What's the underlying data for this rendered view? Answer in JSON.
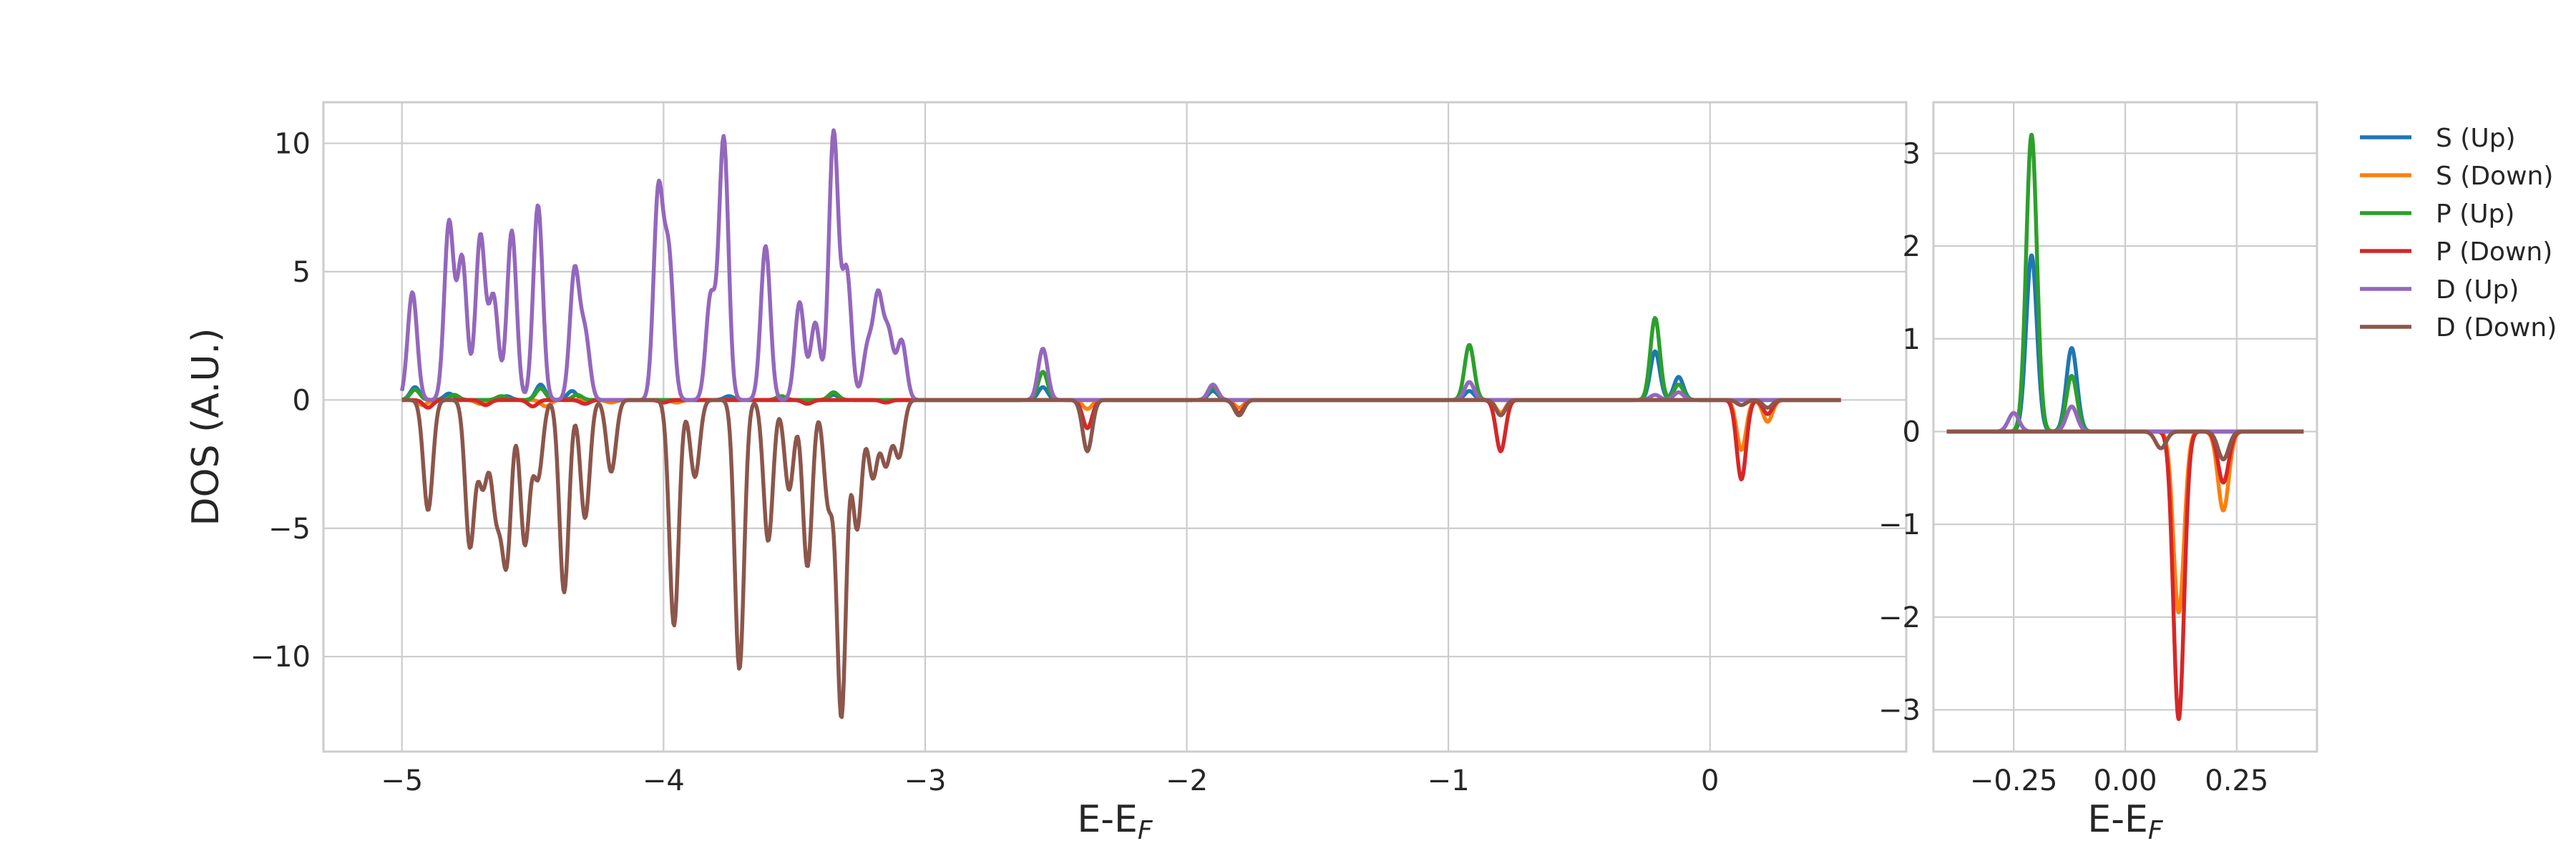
{
  "chart_data": [
    {
      "type": "line",
      "title": "",
      "xlabel": "E-E",
      "xlabel_subscript": "F",
      "ylabel": "DOS (A.U.)",
      "xlim": [
        -5.3,
        0.75
      ],
      "ylim": [
        -13.7,
        11.6
      ],
      "xticks": [
        -5,
        -4,
        -3,
        -2,
        -1,
        0
      ],
      "xtick_labels": [
        "−5",
        "−4",
        "−3",
        "−2",
        "−1",
        "0"
      ],
      "yticks": [
        -10,
        -5,
        0,
        5,
        10
      ],
      "ytick_labels": [
        "−10",
        "−5",
        "0",
        "5",
        "10"
      ],
      "grid": true,
      "sigma": 0.018,
      "x_range": [
        -5.0,
        0.5
      ],
      "series": [
        {
          "name": "S (Up)",
          "color": "#1f77b4",
          "peaks": [
            [
              -4.95,
              0.5
            ],
            [
              -4.82,
              0.25
            ],
            [
              -4.6,
              0.15
            ],
            [
              -4.47,
              0.6
            ],
            [
              -4.35,
              0.35
            ],
            [
              -3.75,
              0.15
            ],
            [
              -3.35,
              0.2
            ],
            [
              -2.55,
              0.5
            ],
            [
              -1.9,
              0.35
            ],
            [
              -0.92,
              0.35
            ],
            [
              -0.21,
              1.9
            ],
            [
              -0.12,
              0.9
            ]
          ]
        },
        {
          "name": "S (Down)",
          "color": "#ff7f0e",
          "peaks": [
            [
              -4.92,
              -0.2
            ],
            [
              -4.7,
              -0.15
            ],
            [
              -4.45,
              -0.25
            ],
            [
              -4.2,
              -0.1
            ],
            [
              -3.95,
              -0.1
            ],
            [
              -2.38,
              -0.35
            ],
            [
              -1.8,
              -0.3
            ],
            [
              -0.8,
              -0.5
            ],
            [
              0.12,
              -1.95
            ],
            [
              0.22,
              -0.85
            ]
          ]
        },
        {
          "name": "P (Up)",
          "color": "#2ca02c",
          "peaks": [
            [
              -4.95,
              0.4
            ],
            [
              -4.8,
              0.2
            ],
            [
              -4.62,
              0.15
            ],
            [
              -4.47,
              0.45
            ],
            [
              -4.33,
              0.2
            ],
            [
              -3.55,
              0.15
            ],
            [
              -3.35,
              0.3
            ],
            [
              -2.55,
              1.1
            ],
            [
              -1.9,
              0.5
            ],
            [
              -0.92,
              2.15
            ],
            [
              -0.21,
              3.2
            ],
            [
              -0.12,
              0.6
            ]
          ]
        },
        {
          "name": "P (Down)",
          "color": "#d62728",
          "peaks": [
            [
              -4.9,
              -0.3
            ],
            [
              -4.68,
              -0.2
            ],
            [
              -4.5,
              -0.25
            ],
            [
              -4.3,
              -0.15
            ],
            [
              -4.0,
              -0.1
            ],
            [
              -3.45,
              -0.15
            ],
            [
              -3.15,
              -0.1
            ],
            [
              -2.38,
              -1.1
            ],
            [
              -1.8,
              -0.5
            ],
            [
              -0.8,
              -2.0
            ],
            [
              0.12,
              -3.1
            ],
            [
              0.22,
              -0.55
            ]
          ]
        },
        {
          "name": "D (Up)",
          "color": "#9467bd",
          "peaks": [
            [
              -4.96,
              4.2
            ],
            [
              -4.82,
              6.9
            ],
            [
              -4.77,
              5.5
            ],
            [
              -4.7,
              6.4
            ],
            [
              -4.65,
              4.0
            ],
            [
              -4.58,
              6.6
            ],
            [
              -4.48,
              7.6
            ],
            [
              -4.34,
              5.0
            ],
            [
              -4.3,
              2.5
            ],
            [
              -4.02,
              8.0
            ],
            [
              -3.98,
              5.5
            ],
            [
              -3.77,
              10.2
            ],
            [
              -3.82,
              4.0
            ],
            [
              -3.61,
              6.0
            ],
            [
              -3.48,
              3.8
            ],
            [
              -3.42,
              3.0
            ],
            [
              -3.35,
              10.4
            ],
            [
              -3.3,
              5.0
            ],
            [
              -3.22,
              2.0
            ],
            [
              -3.18,
              3.9
            ],
            [
              -3.14,
              2.5
            ],
            [
              -3.09,
              2.3
            ],
            [
              -2.55,
              2.0
            ],
            [
              -1.9,
              0.6
            ],
            [
              -0.92,
              0.7
            ],
            [
              -0.21,
              0.2
            ],
            [
              -0.12,
              0.3
            ]
          ]
        },
        {
          "name": "D (Down)",
          "color": "#8c564b",
          "peaks": [
            [
              -4.9,
              -4.3
            ],
            [
              -4.74,
              -5.7
            ],
            [
              -4.69,
              -3.3
            ],
            [
              -4.64,
              -4.2
            ],
            [
              -4.6,
              -6.2
            ],
            [
              -4.53,
              -5.6
            ],
            [
              -4.48,
              -3.0
            ],
            [
              -4.38,
              -7.5
            ],
            [
              -4.3,
              -4.6
            ],
            [
              -4.2,
              -2.8
            ],
            [
              -3.96,
              -8.8
            ],
            [
              -3.88,
              -3.0
            ],
            [
              -3.71,
              -10.5
            ],
            [
              -3.6,
              -5.5
            ],
            [
              -3.52,
              -3.5
            ],
            [
              -3.45,
              -6.5
            ],
            [
              -3.37,
              -4.0
            ],
            [
              -3.32,
              -12.3
            ],
            [
              -3.26,
              -5.0
            ],
            [
              -3.2,
              -3.0
            ],
            [
              -3.15,
              -2.5
            ],
            [
              -3.1,
              -2.2
            ],
            [
              -2.38,
              -2.0
            ],
            [
              -1.8,
              -0.6
            ],
            [
              -0.8,
              -0.6
            ],
            [
              0.12,
              -0.2
            ],
            [
              0.22,
              -0.3
            ]
          ]
        }
      ]
    },
    {
      "type": "line",
      "title": "",
      "xlabel": "E-E",
      "xlabel_subscript": "F",
      "ylabel": "",
      "xlim": [
        -0.43,
        0.43
      ],
      "ylim": [
        -3.45,
        3.55
      ],
      "xticks": [
        -0.25,
        0.0,
        0.25
      ],
      "xtick_labels": [
        "−0.25",
        "0.00",
        "0.25"
      ],
      "yticks": [
        -3,
        -2,
        -1,
        0,
        1,
        2,
        3
      ],
      "ytick_labels": [
        "−3",
        "−2",
        "−1",
        "0",
        "1",
        "2",
        "3"
      ],
      "grid": true,
      "sigma": 0.012,
      "x_range": [
        -0.4,
        0.4
      ],
      "series": [
        {
          "name": "S (Up)",
          "color": "#1f77b4",
          "peaks": [
            [
              -0.21,
              1.9
            ],
            [
              -0.12,
              0.9
            ]
          ]
        },
        {
          "name": "S (Down)",
          "color": "#ff7f0e",
          "peaks": [
            [
              0.12,
              -1.95
            ],
            [
              0.22,
              -0.85
            ]
          ]
        },
        {
          "name": "P (Up)",
          "color": "#2ca02c",
          "peaks": [
            [
              -0.21,
              3.2
            ],
            [
              -0.12,
              0.6
            ]
          ]
        },
        {
          "name": "P (Down)",
          "color": "#d62728",
          "peaks": [
            [
              0.12,
              -3.1
            ],
            [
              0.22,
              -0.55
            ]
          ]
        },
        {
          "name": "D (Up)",
          "color": "#9467bd",
          "peaks": [
            [
              -0.25,
              0.2
            ],
            [
              -0.12,
              0.27
            ]
          ]
        },
        {
          "name": "D (Down)",
          "color": "#8c564b",
          "peaks": [
            [
              0.08,
              -0.18
            ],
            [
              0.22,
              -0.3
            ]
          ]
        }
      ]
    }
  ],
  "legend": {
    "placement": "right",
    "items": [
      {
        "label": "S (Up)",
        "color": "#1f77b4"
      },
      {
        "label": "S (Down)",
        "color": "#ff7f0e"
      },
      {
        "label": "P (Up)",
        "color": "#2ca02c"
      },
      {
        "label": "P (Down)",
        "color": "#d62728"
      },
      {
        "label": "D (Up)",
        "color": "#9467bd"
      },
      {
        "label": "D (Down)",
        "color": "#8c564b"
      }
    ]
  }
}
